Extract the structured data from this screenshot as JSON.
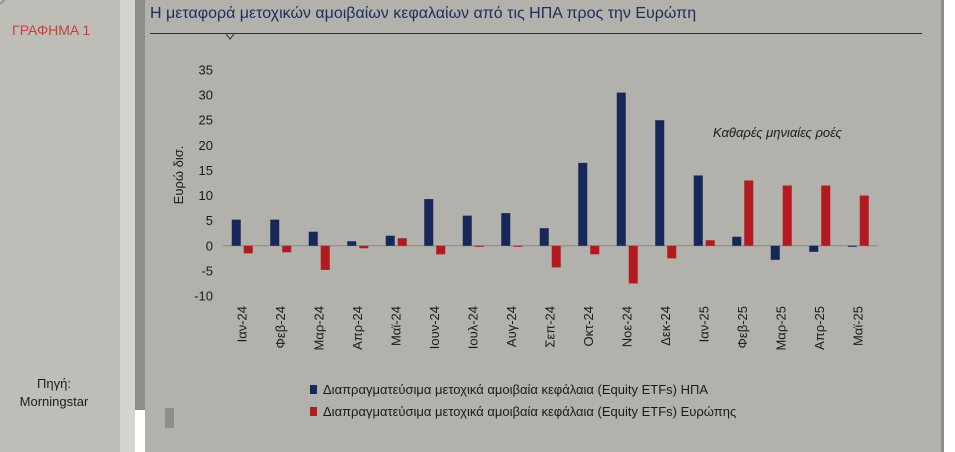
{
  "figure_label": "ΓΡΑΦΗΜΑ 1",
  "source": {
    "label": "Πηγή:",
    "value": "Morningstar"
  },
  "colors": {
    "us": "#16275a",
    "europe": "#b21a1f",
    "title": "#1b2e5c",
    "figure_label": "#c6403a"
  },
  "chart_data": {
    "type": "bar",
    "title": "Η μεταφορά μετοχικών αμοιβαίων κεφαλαίων από τις ΗΠΑ προς την Ευρώπη",
    "annotation": "Καθαρές μηνιαίες ροές",
    "ylabel": "Ευρώ δισ.",
    "xlabel": "",
    "ylim": [
      -10,
      35
    ],
    "yticks": [
      -10,
      -5,
      0,
      5,
      10,
      15,
      20,
      25,
      30,
      35
    ],
    "grid": false,
    "legend_position": "bottom",
    "categories": [
      "Ιαν-24",
      "Φεβ-24",
      "Μαρ-24",
      "Απρ-24",
      "Μαϊ-24",
      "Ιουν-24",
      "Ιουλ-24",
      "Αυγ-24",
      "Σεπ-24",
      "Οκτ-24",
      "Νοε-24",
      "Δεκ-24",
      "Ιαν-25",
      "Φεβ-25",
      "Μαρ-25",
      "Απρ-25",
      "Μαϊ-25"
    ],
    "series": [
      {
        "name": "Διαπραγματεύσιμα μετοχικά αμοιβαία κεφάλαια (Equity ETFs) ΗΠΑ",
        "color": "#16275a",
        "values": [
          5.2,
          5.2,
          2.8,
          0.9,
          2.0,
          9.3,
          6.0,
          6.5,
          3.5,
          16.5,
          30.5,
          25.0,
          14.0,
          1.8,
          -2.8,
          -1.2,
          -0.2
        ]
      },
      {
        "name": "Διαπραγματεύσιμα μετοχικά αμοιβαία κεφάλαια (Equity ETFs) Ευρώπης",
        "color": "#b21a1f",
        "values": [
          -1.5,
          -1.3,
          -4.8,
          -0.5,
          1.5,
          -1.7,
          -0.2,
          -0.2,
          -4.3,
          -1.7,
          -7.5,
          -2.5,
          1.1,
          13.0,
          12.0,
          12.0,
          10.0
        ]
      }
    ]
  }
}
